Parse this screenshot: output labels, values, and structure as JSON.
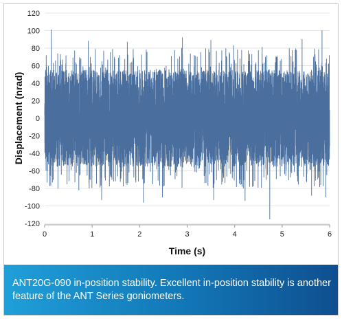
{
  "chart_data": {
    "type": "line",
    "title": "",
    "xlabel": "Time (s)",
    "ylabel": "Displacement (nrad)",
    "xlim": [
      0,
      6
    ],
    "ylim": [
      -125,
      125
    ],
    "x_ticks": [
      0,
      1,
      2,
      3,
      4,
      5,
      6
    ],
    "y_ticks": [
      120,
      100,
      80,
      60,
      40,
      20,
      0,
      -20,
      -40,
      -60,
      -80,
      -100,
      -120
    ],
    "grid": "horizontal",
    "legend": "none",
    "series_color": "#4a6f9e",
    "series": [
      {
        "name": "",
        "description_stats": {
          "mean": 0,
          "typical_envelope": [
            -55,
            55
          ],
          "max": 101,
          "min": -115,
          "sample_count": 6000
        },
        "peaks": [
          {
            "x": 0.14,
            "y": 101
          },
          {
            "x": 0.34,
            "y": 66
          },
          {
            "x": 0.92,
            "y": 88
          },
          {
            "x": 1.74,
            "y": 87
          },
          {
            "x": 2.9,
            "y": 92
          },
          {
            "x": 3.5,
            "y": 89
          },
          {
            "x": 3.98,
            "y": 83
          },
          {
            "x": 4.58,
            "y": 81
          },
          {
            "x": 5.42,
            "y": 90
          },
          {
            "x": 5.84,
            "y": 100
          },
          {
            "x": 0.28,
            "y": -80
          },
          {
            "x": 0.72,
            "y": -82
          },
          {
            "x": 1.2,
            "y": -93
          },
          {
            "x": 2.08,
            "y": -96
          },
          {
            "x": 2.48,
            "y": -90
          },
          {
            "x": 3.56,
            "y": -93
          },
          {
            "x": 4.22,
            "y": -94
          },
          {
            "x": 4.74,
            "y": -115
          },
          {
            "x": 5.62,
            "y": -88
          },
          {
            "x": 5.92,
            "y": -90
          }
        ]
      }
    ]
  },
  "caption": "ANT20G-090 in-position stability. Excellent in-position stability is another feature of the ANT Series goniometers."
}
